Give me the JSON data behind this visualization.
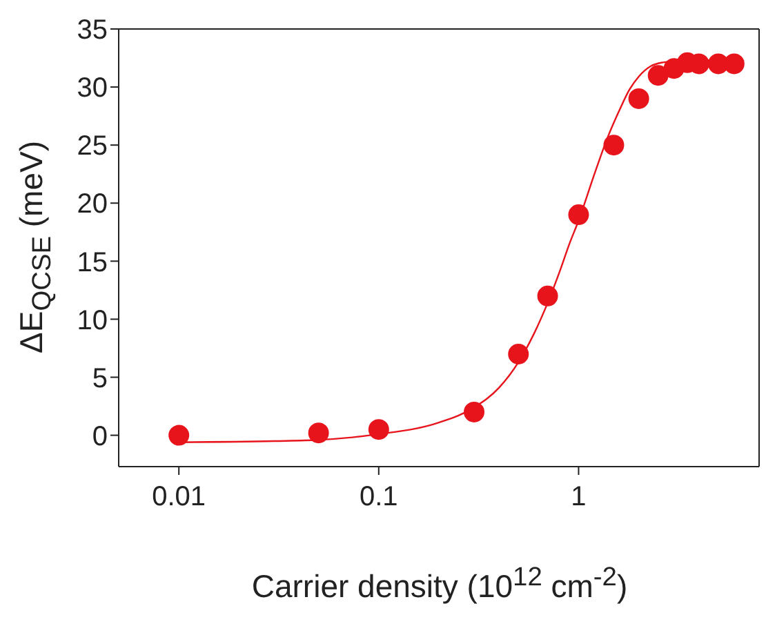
{
  "chart_data": {
    "type": "scatter",
    "xlabel": "Carrier density (10$^{12}$ cm$^{-2}$)",
    "ylabel": "ΔE$_{QCSE}$ (meV)",
    "log": "x",
    "xlim": [
      0.005,
      8
    ],
    "xticks": [
      0.01,
      0.1,
      1
    ],
    "ylim": [
      -2.7,
      35
    ],
    "yticks": [
      0,
      5,
      10,
      15,
      20,
      25,
      30,
      35
    ],
    "grid": false,
    "legend": false,
    "series": [
      {
        "color": "#e8141c",
        "marker": "circle",
        "x": [
          0.01,
          0.05,
          0.1,
          0.3,
          0.5,
          0.7,
          1,
          1.5,
          2,
          2.5,
          3,
          3.5,
          4,
          5,
          6
        ],
        "values": [
          0,
          0.2,
          0.5,
          2,
          7,
          12,
          19,
          25,
          29,
          31,
          31.6,
          32.1,
          32,
          32,
          32
        ]
      },
      {
        "type": "line",
        "color": "#e8141c",
        "marker": "none",
        "line_style": "solid",
        "x": [
          0.01,
          0.03,
          0.05,
          0.1,
          0.2,
          0.3,
          0.4,
          0.5,
          0.6,
          0.7,
          0.8,
          0.9,
          1,
          1.2,
          1.4,
          1.6,
          1.8,
          2,
          2.3,
          2.6,
          3,
          4,
          6
        ],
        "values": [
          -0.6,
          -0.5,
          -0.4,
          0.1,
          1.1,
          2.4,
          4.1,
          6.3,
          8.8,
          11.4,
          14,
          16.5,
          18.5,
          22.5,
          25.7,
          28,
          29.8,
          30.9,
          31.8,
          32.1,
          32.2,
          32.3,
          32.3
        ]
      }
    ]
  }
}
